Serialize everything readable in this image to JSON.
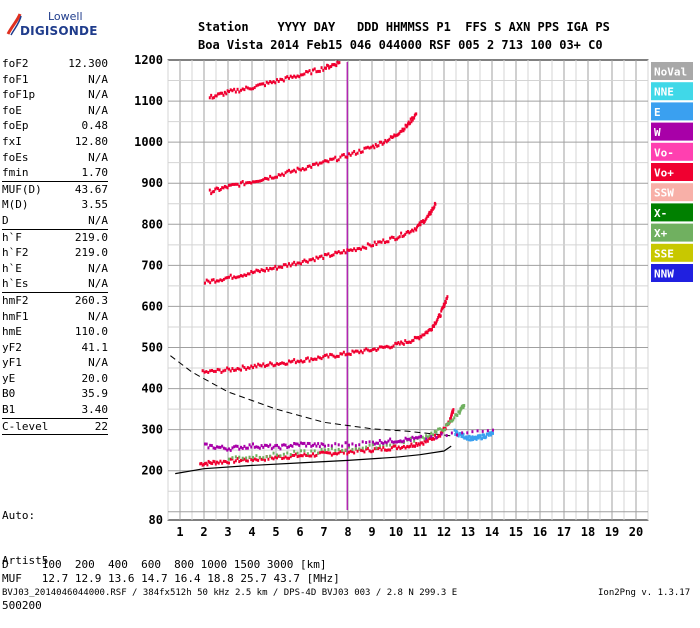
{
  "logo": {
    "line1": "Lowell",
    "line2": "DIGISONDE"
  },
  "header": {
    "line1": "Station    YYYY DAY   DDD HHMMSS P1  FFS S AXN PPS IGA PS",
    "line2": "Boa Vista 2014 Feb15 046 044000 RSF 005 2 713 100 03+ C0"
  },
  "params": [
    {
      "k": "foF2",
      "v": "12.300"
    },
    {
      "k": "foF1",
      "v": "N/A"
    },
    {
      "k": "foF1p",
      "v": "N/A"
    },
    {
      "k": "foE",
      "v": "N/A"
    },
    {
      "k": "foEp",
      "v": "0.48"
    },
    {
      "k": "fxI",
      "v": "12.80"
    },
    {
      "k": "foEs",
      "v": "N/A"
    },
    {
      "k": "fmin",
      "v": "1.70",
      "sep": true
    },
    {
      "k": "MUF(D)",
      "v": "43.67"
    },
    {
      "k": "M(D)",
      "v": "3.55"
    },
    {
      "k": "D",
      "v": "N/A",
      "sep": true
    },
    {
      "k": "h`F",
      "v": "219.0"
    },
    {
      "k": "h`F2",
      "v": "219.0"
    },
    {
      "k": "h`E",
      "v": "N/A"
    },
    {
      "k": "h`Es",
      "v": "N/A",
      "sep": true
    },
    {
      "k": "hmF2",
      "v": "260.3"
    },
    {
      "k": "hmF1",
      "v": "N/A"
    },
    {
      "k": "hmE",
      "v": "110.0"
    },
    {
      "k": "yF2",
      "v": "41.1"
    },
    {
      "k": "yF1",
      "v": "N/A"
    },
    {
      "k": "yE",
      "v": "20.0"
    },
    {
      "k": "B0",
      "v": "35.9"
    },
    {
      "k": "B1",
      "v": "3.40",
      "sep": true
    },
    {
      "k": "C-level",
      "v": "22",
      "sep": true
    }
  ],
  "auto": {
    "l1": "Auto:",
    "l2": "Artist5",
    "l3": "500200"
  },
  "footer": {
    "d_row": "D     100  200  400  600  800 1000 1500 3000 [km]",
    "muf_row": "MUF   12.7 12.9 13.6 14.7 16.4 18.8 25.7 43.7 [MHz]",
    "file_info": "BVJ03_2014046044000.RSF / 384fx512h 50 kHz 2.5 km / DPS-4D BVJ03 003 / 2.8 N 299.3 E",
    "version": "Ion2Png v. 1.3.17"
  },
  "legend": [
    {
      "label": "NoVal",
      "color": "#a8a8a8"
    },
    {
      "label": "NNE",
      "color": "#40d8e8"
    },
    {
      "label": "E",
      "color": "#3aa0f0"
    },
    {
      "label": "W",
      "color": "#a800a8"
    },
    {
      "label": "Vo-",
      "color": "#ff40b0"
    },
    {
      "label": "Vo+",
      "color": "#f00030"
    },
    {
      "label": "SSW",
      "color": "#f8b0a8"
    },
    {
      "label": "X-",
      "color": "#008000"
    },
    {
      "label": "X+",
      "color": "#70b060"
    },
    {
      "label": "SSE",
      "color": "#c8c800"
    },
    {
      "label": "NNW",
      "color": "#2020e0"
    }
  ],
  "chart_data": {
    "type": "scatter",
    "title": "",
    "xlabel": "",
    "ylabel": "",
    "xlim": [
      0.5,
      20.5
    ],
    "ylim": [
      80,
      1200
    ],
    "x_ticks": [
      1,
      2,
      3,
      4,
      5,
      6,
      7,
      8,
      9,
      10,
      11,
      12,
      13,
      14,
      15,
      16,
      17,
      18,
      19,
      20
    ],
    "y_ticks": [
      80,
      200,
      300,
      400,
      500,
      600,
      700,
      800,
      900,
      1000,
      1100,
      1200
    ],
    "grid": true,
    "traces": [
      {
        "name": "F2 O-trace",
        "color": "#f00030",
        "points": [
          [
            1.8,
            218
          ],
          [
            2.5,
            222
          ],
          [
            3.5,
            227
          ],
          [
            4.5,
            231
          ],
          [
            5.5,
            236
          ],
          [
            6.5,
            240
          ],
          [
            7.5,
            245
          ],
          [
            8.5,
            250
          ],
          [
            9.5,
            255
          ],
          [
            10.5,
            262
          ],
          [
            11.2,
            272
          ],
          [
            11.8,
            290
          ],
          [
            12.2,
            320
          ],
          [
            12.35,
            350
          ]
        ]
      },
      {
        "name": "F2 2-hop",
        "color": "#f00030",
        "points": [
          [
            1.9,
            440
          ],
          [
            3,
            447
          ],
          [
            4,
            455
          ],
          [
            5,
            462
          ],
          [
            6,
            470
          ],
          [
            7,
            478
          ],
          [
            8,
            487
          ],
          [
            9,
            496
          ],
          [
            10,
            508
          ],
          [
            10.8,
            522
          ],
          [
            11.4,
            545
          ],
          [
            11.8,
            580
          ],
          [
            12.1,
            625
          ]
        ]
      },
      {
        "name": "F2 3-hop",
        "color": "#f00030",
        "points": [
          [
            2.0,
            660
          ],
          [
            3,
            672
          ],
          [
            4,
            684
          ],
          [
            5,
            696
          ],
          [
            6,
            710
          ],
          [
            7,
            723
          ],
          [
            8,
            737
          ],
          [
            9,
            752
          ],
          [
            10,
            770
          ],
          [
            10.8,
            792
          ],
          [
            11.3,
            820
          ],
          [
            11.6,
            850
          ]
        ]
      },
      {
        "name": "F2 4-hop",
        "color": "#f00030",
        "points": [
          [
            2.2,
            880
          ],
          [
            3,
            893
          ],
          [
            4,
            906
          ],
          [
            5,
            920
          ],
          [
            6,
            936
          ],
          [
            7,
            952
          ],
          [
            8,
            970
          ],
          [
            9,
            990
          ],
          [
            9.8,
            1012
          ],
          [
            10.4,
            1040
          ],
          [
            10.8,
            1070
          ]
        ]
      },
      {
        "name": "F2 5-hop",
        "color": "#f00030",
        "points": [
          [
            2.2,
            1110
          ],
          [
            3,
            1123
          ],
          [
            4,
            1135
          ],
          [
            5,
            1150
          ],
          [
            6,
            1165
          ],
          [
            7,
            1182
          ],
          [
            7.6,
            1195
          ]
        ]
      },
      {
        "name": "X trace",
        "color": "#70b060",
        "points": [
          [
            3,
            232
          ],
          [
            5,
            240
          ],
          [
            7,
            250
          ],
          [
            9,
            260
          ],
          [
            11,
            280
          ],
          [
            12,
            305
          ],
          [
            12.6,
            345
          ],
          [
            12.8,
            360
          ]
        ]
      },
      {
        "name": "Oblique E",
        "color": "#3aa0f0",
        "points": [
          [
            12.4,
            295
          ],
          [
            12.8,
            285
          ],
          [
            13.2,
            278
          ],
          [
            13.6,
            285
          ],
          [
            14,
            292
          ]
        ]
      },
      {
        "name": "W echoes",
        "color": "#a800a8",
        "points": [
          [
            2,
            262
          ],
          [
            3,
            255
          ],
          [
            4,
            262
          ],
          [
            5,
            258
          ],
          [
            6,
            266
          ],
          [
            7,
            262
          ],
          [
            9,
            270
          ],
          [
            10,
            275
          ],
          [
            11,
            280
          ],
          [
            14,
            300
          ]
        ]
      }
    ],
    "profile_curve": [
      [
        0.8,
        193
      ],
      [
        2,
        205
      ],
      [
        4,
        213
      ],
      [
        6,
        219
      ],
      [
        8,
        225
      ],
      [
        10,
        233
      ],
      [
        11,
        239
      ],
      [
        12,
        248
      ],
      [
        12.3,
        260
      ]
    ],
    "muf_curve": [
      [
        0.6,
        480
      ],
      [
        1.5,
        440
      ],
      [
        3,
        392
      ],
      [
        5,
        350
      ],
      [
        7,
        318
      ],
      [
        9,
        302
      ],
      [
        10.5,
        296
      ],
      [
        11.5,
        290
      ],
      [
        12.3,
        285
      ]
    ]
  }
}
